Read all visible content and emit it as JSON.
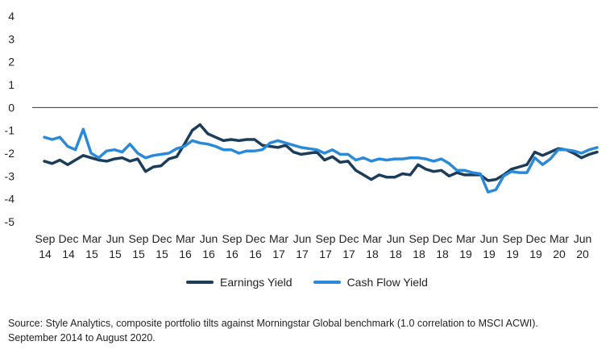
{
  "chart_data": {
    "type": "line",
    "title": "",
    "xlabel": "",
    "ylabel": "",
    "ylim": [
      -5,
      4
    ],
    "y_ticks": [
      "4",
      "3",
      "2",
      "1",
      "0",
      "-1",
      "-2",
      "-3",
      "-4",
      "-5"
    ],
    "grid": false,
    "legend_position": "bottom",
    "x_tick_labels": [
      {
        "month": "Sep",
        "year": "14"
      },
      {
        "month": "Dec",
        "year": "14"
      },
      {
        "month": "Mar",
        "year": "15"
      },
      {
        "month": "Jun",
        "year": "15"
      },
      {
        "month": "Sep",
        "year": "15"
      },
      {
        "month": "Dec",
        "year": "15"
      },
      {
        "month": "Mar",
        "year": "16"
      },
      {
        "month": "Jun",
        "year": "16"
      },
      {
        "month": "Sep",
        "year": "16"
      },
      {
        "month": "Dec",
        "year": "16"
      },
      {
        "month": "Mar",
        "year": "17"
      },
      {
        "month": "Jun",
        "year": "17"
      },
      {
        "month": "Sep",
        "year": "17"
      },
      {
        "month": "Dec",
        "year": "17"
      },
      {
        "month": "Mar",
        "year": "18"
      },
      {
        "month": "Jun",
        "year": "18"
      },
      {
        "month": "Sep",
        "year": "18"
      },
      {
        "month": "Dec",
        "year": "18"
      },
      {
        "month": "Mar",
        "year": "19"
      },
      {
        "month": "Jun",
        "year": "19"
      },
      {
        "month": "Sep",
        "year": "19"
      },
      {
        "month": "Dec",
        "year": "19"
      },
      {
        "month": "Mar",
        "year": "20"
      },
      {
        "month": "Jun",
        "year": "20"
      }
    ],
    "series": [
      {
        "name": "Earnings Yield",
        "color": "#1c3d5a",
        "values": [
          -2.35,
          -2.45,
          -2.3,
          -2.5,
          -2.3,
          -2.1,
          -2.2,
          -2.3,
          -2.35,
          -2.25,
          -2.2,
          -2.35,
          -2.25,
          -2.8,
          -2.6,
          -2.55,
          -2.25,
          -2.15,
          -1.6,
          -1.0,
          -0.75,
          -1.15,
          -1.3,
          -1.45,
          -1.4,
          -1.45,
          -1.4,
          -1.4,
          -1.65,
          -1.7,
          -1.75,
          -1.65,
          -1.95,
          -2.05,
          -2.0,
          -1.95,
          -2.3,
          -2.15,
          -2.4,
          -2.35,
          -2.75,
          -2.95,
          -3.15,
          -2.95,
          -3.05,
          -3.05,
          -2.9,
          -2.95,
          -2.5,
          -2.7,
          -2.8,
          -2.75,
          -3.0,
          -2.85,
          -2.95,
          -2.95,
          -2.95,
          -3.2,
          -3.15,
          -2.95,
          -2.7,
          -2.6,
          -2.5,
          -1.95,
          -2.1,
          -1.95,
          -1.8,
          -1.85,
          -2.0,
          -2.2,
          -2.05,
          -1.95
        ]
      },
      {
        "name": "Cash Flow Yield",
        "color": "#2b8ad8",
        "values": [
          -1.3,
          -1.4,
          -1.3,
          -1.7,
          -1.85,
          -0.95,
          -2.0,
          -2.2,
          -1.9,
          -1.85,
          -1.95,
          -1.6,
          -2.0,
          -2.2,
          -2.1,
          -2.05,
          -2.0,
          -1.8,
          -1.7,
          -1.45,
          -1.55,
          -1.6,
          -1.7,
          -1.85,
          -1.85,
          -2.0,
          -1.9,
          -1.9,
          -1.85,
          -1.55,
          -1.45,
          -1.55,
          -1.65,
          -1.75,
          -1.8,
          -1.85,
          -2.0,
          -1.85,
          -2.05,
          -2.05,
          -2.3,
          -2.2,
          -2.35,
          -2.25,
          -2.3,
          -2.25,
          -2.25,
          -2.2,
          -2.2,
          -2.25,
          -2.35,
          -2.25,
          -2.45,
          -2.75,
          -2.75,
          -2.85,
          -2.9,
          -3.7,
          -3.6,
          -3.0,
          -2.8,
          -2.85,
          -2.85,
          -2.2,
          -2.5,
          -2.25,
          -1.85,
          -1.85,
          -1.9,
          -2.0,
          -1.85,
          -1.75
        ]
      }
    ]
  },
  "legend": {
    "earnings_label": "Earnings Yield",
    "cashflow_label": "Cash Flow Yield"
  },
  "source": {
    "line1": "Source: Style Analytics, composite portfolio tilts against Morningstar Global benchmark (1.0 correlation to MSCI ACWI).",
    "line2": "September 2014 to August 2020."
  }
}
